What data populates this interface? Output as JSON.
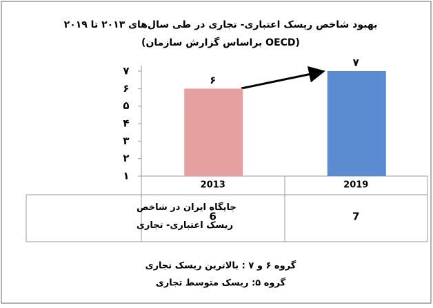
{
  "chart_data": {
    "type": "bar",
    "title": "بهبود شاخص ریسک اعتباری- تجاری در طی سال‌های ۲۰۱۳ تا ۲۰۱۹",
    "subtitle": "(براساس گزارش سازمان OECD)",
    "categories": [
      "2013",
      "2019"
    ],
    "values": [
      6,
      7
    ],
    "value_labels": [
      "۶",
      "۷"
    ],
    "colors": [
      "#e6a0a0",
      "#5b8bd0"
    ],
    "ylim": [
      1,
      7
    ],
    "yticks": [
      {
        "value": 1,
        "label": "۱"
      },
      {
        "value": 2,
        "label": "۲"
      },
      {
        "value": 3,
        "label": "۳"
      },
      {
        "value": 4,
        "label": "۴"
      },
      {
        "value": 5,
        "label": "۵"
      },
      {
        "value": 6,
        "label": "۶"
      },
      {
        "value": 7,
        "label": "۷"
      }
    ],
    "grid": false,
    "table_row_label": "جایگاه ایران در شاخص ریسک اعتباری- تجاری",
    "notes": [
      "گروه ۶ و ۷ : بالاترین ریسک تجاری",
      "گروه ۵: ریسک متوسط تجاری"
    ]
  }
}
